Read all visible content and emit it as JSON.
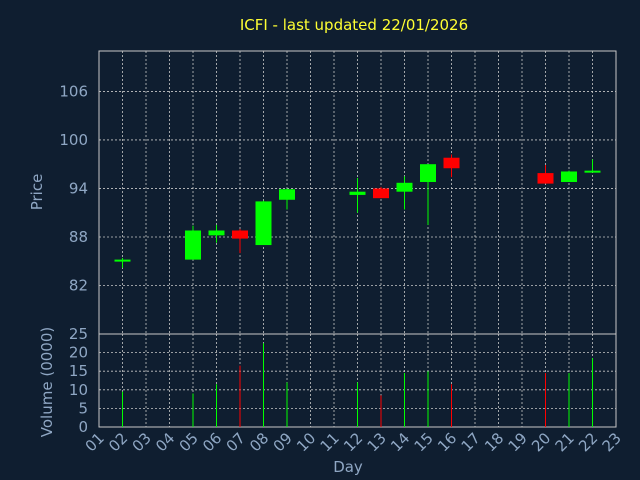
{
  "chart_data": {
    "type": "candlestick",
    "title": "ICFI - last updated 22/01/2026",
    "ylabel": "Price",
    "volume_ylabel": "Volume (0000)",
    "xlabel": "Day",
    "ylim": [
      76,
      111
    ],
    "y_ticks": [
      "106",
      "100",
      "94",
      "88",
      "82"
    ],
    "volume_ylim": [
      0,
      25
    ],
    "volume_ticks": [
      "0",
      "5",
      "10",
      "15",
      "20",
      "25"
    ],
    "x_ticks": [
      "01",
      "02",
      "03",
      "04",
      "05",
      "06",
      "07",
      "08",
      "09",
      "10",
      "11",
      "12",
      "13",
      "14",
      "15",
      "16",
      "17",
      "18",
      "19",
      "20",
      "21",
      "22",
      "23"
    ],
    "grid": true,
    "up_color": "#00ff00",
    "down_color": "#ff0000",
    "candles": [
      {
        "day": 2,
        "open": 85.0,
        "high": 85.4,
        "low": 84.2,
        "close": 85.2,
        "volume": 9.5
      },
      {
        "day": 5,
        "open": 85.2,
        "high": 89.4,
        "low": 85.2,
        "close": 88.8,
        "volume": 9
      },
      {
        "day": 6,
        "open": 88.2,
        "high": 89.5,
        "low": 87.3,
        "close": 88.8,
        "volume": 11.5
      },
      {
        "day": 7,
        "open": 88.8,
        "high": 89.0,
        "low": 86.0,
        "close": 87.8,
        "volume": 16.5
      },
      {
        "day": 8,
        "open": 87.0,
        "high": 92.5,
        "low": 87.0,
        "close": 92.4,
        "volume": 22.5
      },
      {
        "day": 9,
        "open": 92.6,
        "high": 94.0,
        "low": 91.4,
        "close": 93.9,
        "volume": 12
      },
      {
        "day": 12,
        "open": 93.2,
        "high": 95.3,
        "low": 91.0,
        "close": 93.6,
        "volume": 12
      },
      {
        "day": 13,
        "open": 94.0,
        "high": 94.2,
        "low": 92.8,
        "close": 92.8,
        "volume": 8.5
      },
      {
        "day": 14,
        "open": 93.6,
        "high": 95.5,
        "low": 91.4,
        "close": 94.7,
        "volume": 14.5
      },
      {
        "day": 15,
        "open": 94.8,
        "high": 97.0,
        "low": 89.5,
        "close": 97.0,
        "volume": 15
      },
      {
        "day": 16,
        "open": 97.8,
        "high": 98.2,
        "low": 95.4,
        "close": 96.5,
        "volume": 11.5
      },
      {
        "day": 20,
        "open": 95.9,
        "high": 96.9,
        "low": 94.6,
        "close": 94.6,
        "volume": 14.5
      },
      {
        "day": 21,
        "open": 94.8,
        "high": 96.2,
        "low": 94.8,
        "close": 96.1,
        "volume": 14.5
      },
      {
        "day": 22,
        "open": 96.0,
        "high": 97.6,
        "low": 96.0,
        "close": 96.2,
        "volume": 18.5
      }
    ]
  }
}
